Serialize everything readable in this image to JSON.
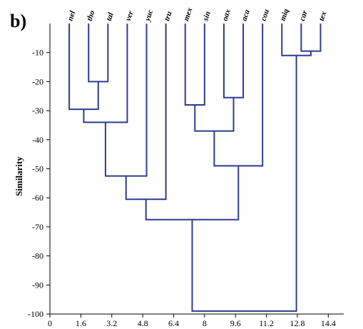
{
  "panel_label": "b)",
  "chart_data": {
    "type": "dendrogram",
    "ylabel": "Similarity",
    "xlim": [
      0,
      15.2
    ],
    "ylim": [
      -100,
      0
    ],
    "x_ticks": [
      "0",
      "1.6",
      "3.2",
      "4.8",
      "6.4",
      "8",
      "9.6",
      "11.2",
      "12.8",
      "14.4"
    ],
    "x_tick_values": [
      0,
      1.6,
      3.2,
      4.8,
      6.4,
      8,
      9.6,
      11.2,
      12.8,
      14.4
    ],
    "y_ticks": [
      "-10",
      "-20",
      "-30",
      "-40",
      "-50",
      "-60",
      "-70",
      "-80",
      "-90",
      "-100"
    ],
    "y_tick_values": [
      -10,
      -20,
      -30,
      -40,
      -50,
      -60,
      -70,
      -80,
      -90,
      -100
    ],
    "leaves": [
      "nel",
      "tho",
      "tal",
      "ver",
      "yuc",
      "tru",
      "mex",
      "sin",
      "oax",
      "aca",
      "cou",
      "miq",
      "car",
      "tex"
    ],
    "leaf_x": [
      1.0,
      2.0,
      3.0,
      4.0,
      5.0,
      6.0,
      7.0,
      8.0,
      9.0,
      10.0,
      11.0,
      12.0,
      13.0,
      14.0
    ],
    "merges": [
      {
        "left": "L:car",
        "right": "L:tex",
        "height": -9.5,
        "id": "m1"
      },
      {
        "left": "L:miq",
        "right": "m1",
        "height": -11,
        "id": "m2"
      },
      {
        "left": "L:tho",
        "right": "L:tal",
        "height": -20,
        "id": "m3"
      },
      {
        "left": "L:oax",
        "right": "L:aca",
        "height": -25.5,
        "id": "m4"
      },
      {
        "left": "L:mex",
        "right": "L:sin",
        "height": -28,
        "id": "m5"
      },
      {
        "left": "L:nel",
        "right": "m3",
        "height": -29.5,
        "id": "m6"
      },
      {
        "left": "m6",
        "right": "L:ver",
        "height": -34,
        "id": "m7"
      },
      {
        "left": "m5",
        "right": "m4",
        "height": -37,
        "id": "m8"
      },
      {
        "left": "m8",
        "right": "L:cou",
        "height": -49,
        "id": "m9"
      },
      {
        "left": "m7",
        "right": "L:yuc",
        "height": -52.5,
        "id": "m10"
      },
      {
        "left": "m10",
        "right": "L:tru",
        "height": -60.5,
        "id": "m11"
      },
      {
        "left": "m11",
        "right": "m9",
        "height": -67.5,
        "id": "m12"
      },
      {
        "left": "m12",
        "right": "m2",
        "height": -99,
        "id": "m13"
      }
    ],
    "link_color": "#2b3d8f"
  }
}
